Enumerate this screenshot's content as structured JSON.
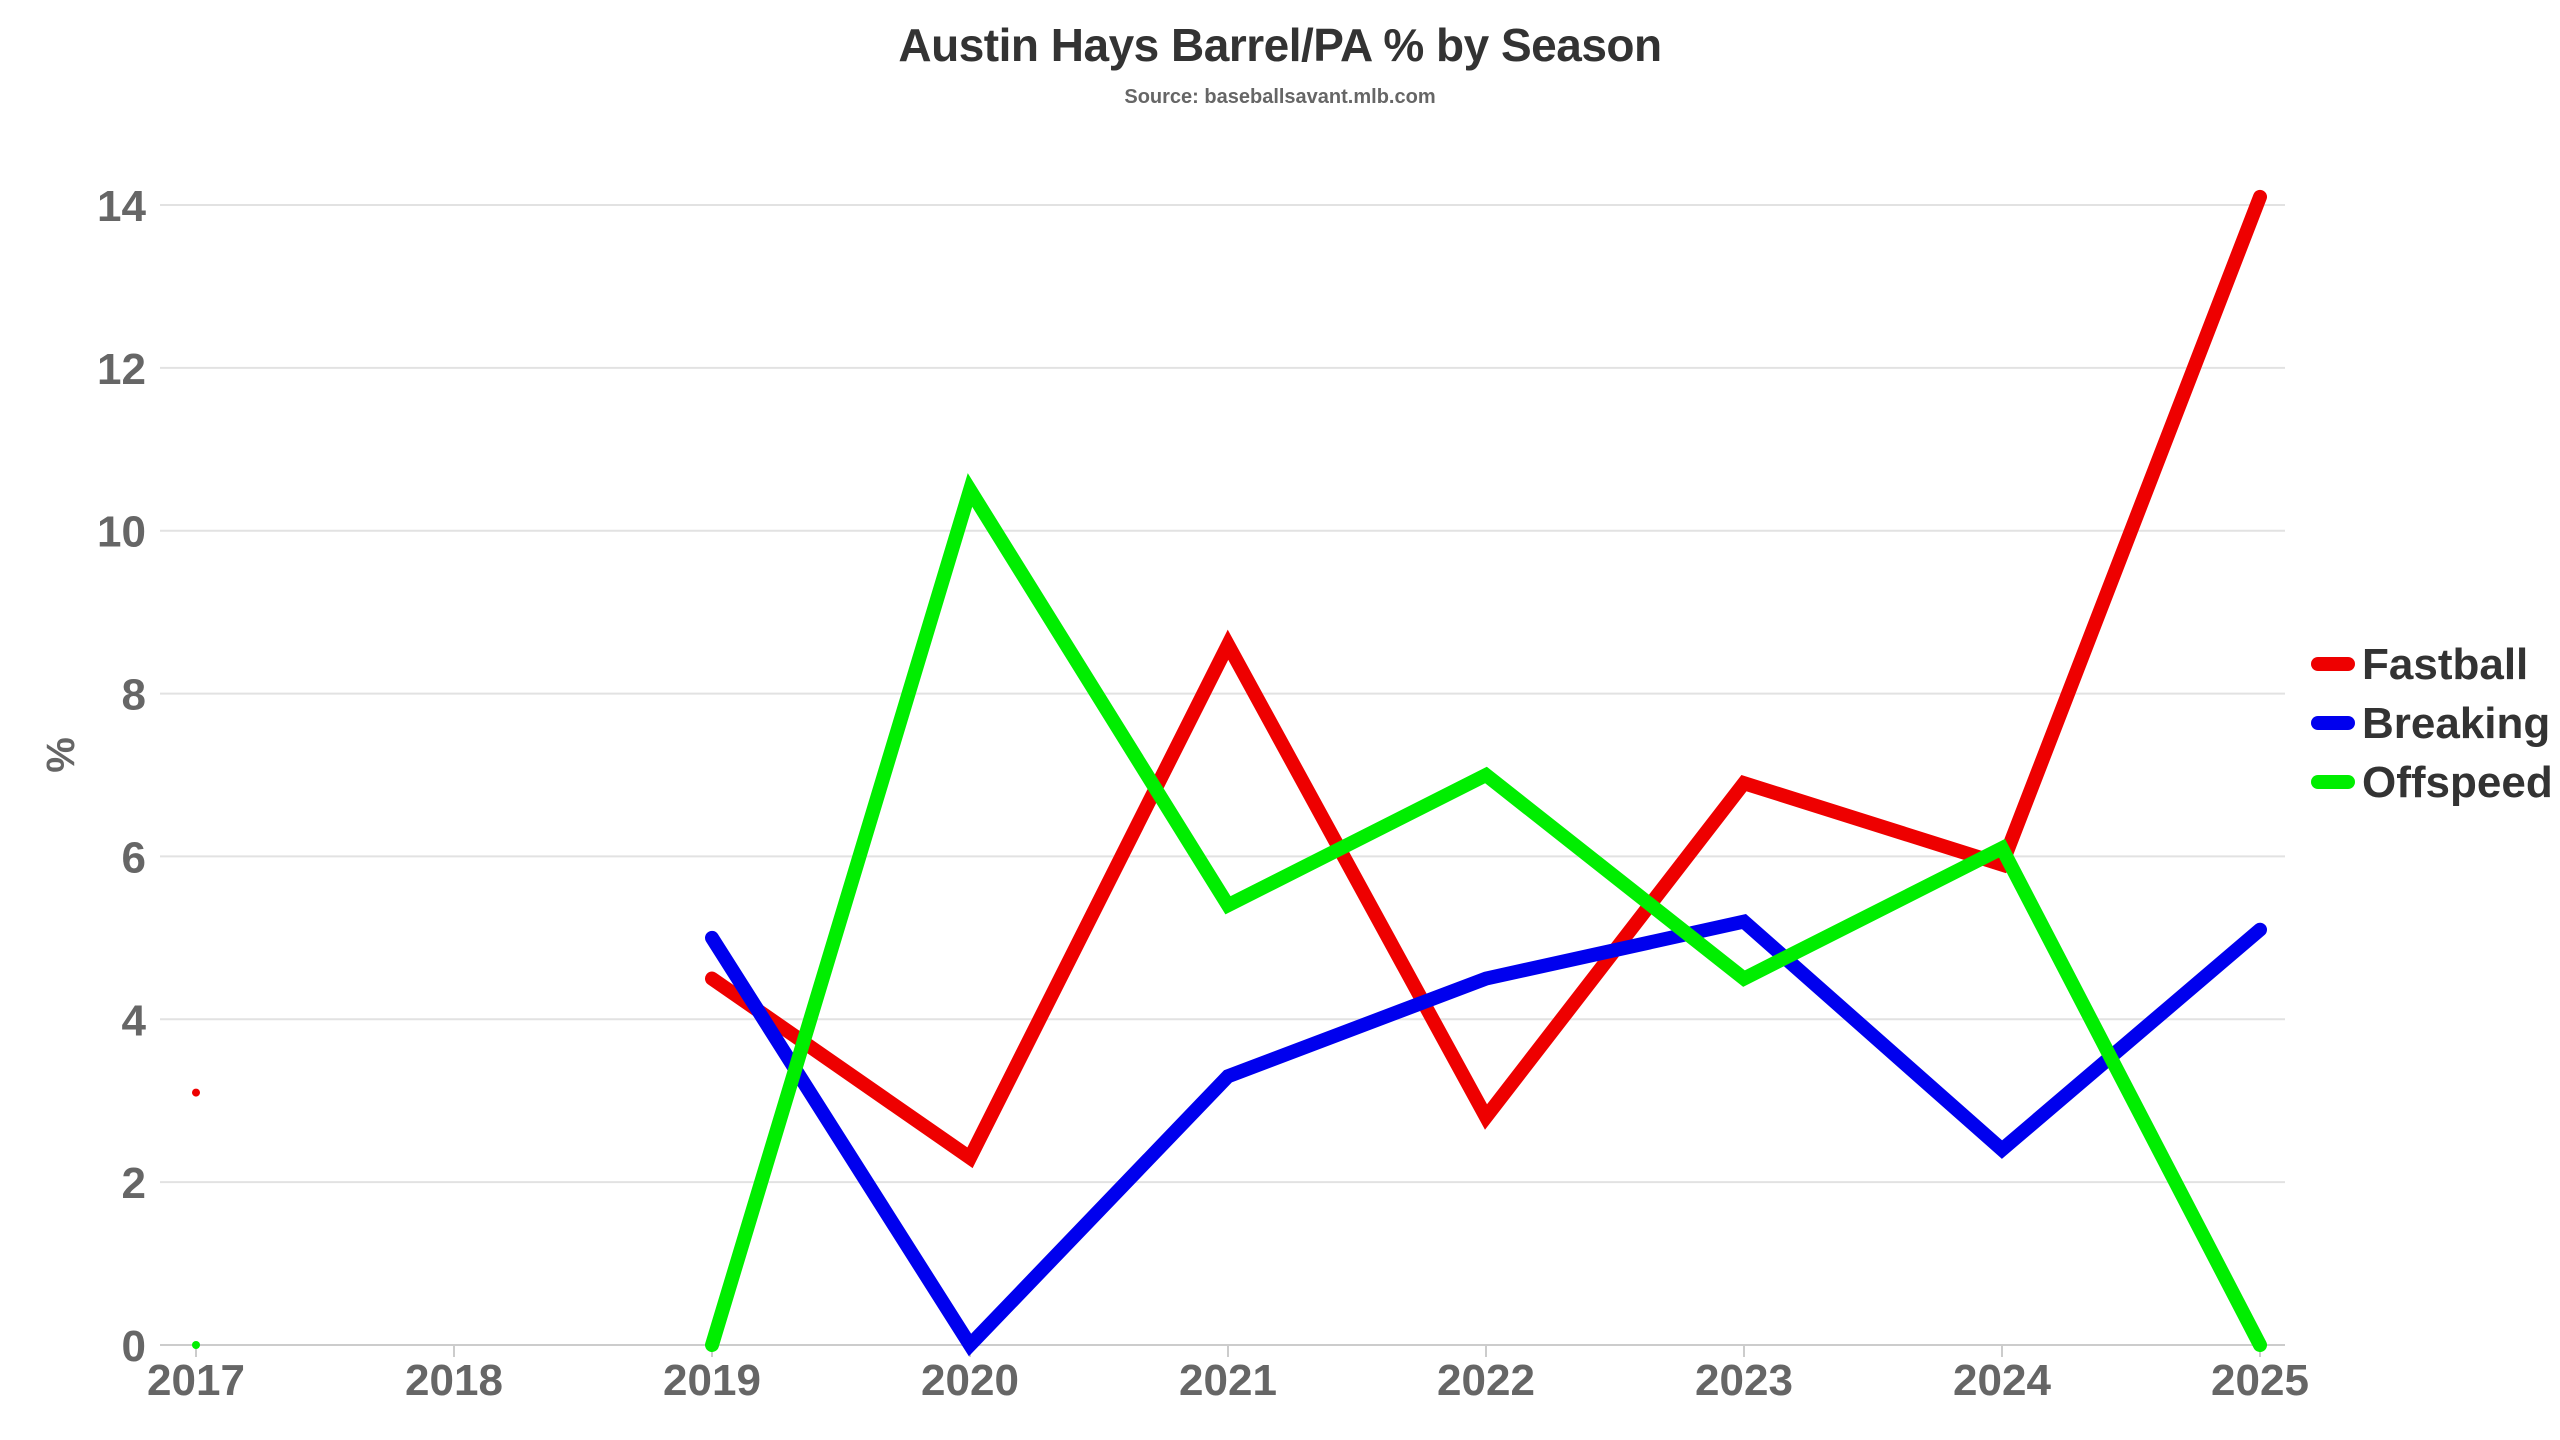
{
  "chart_data": {
    "type": "line",
    "title": "Austin Hays Barrel/PA % by Season",
    "subtitle": "Source: baseballsavant.mlb.com",
    "xlabel": "",
    "ylabel": "%",
    "categories": [
      "2017",
      "2018",
      "2019",
      "2020",
      "2021",
      "2022",
      "2023",
      "2024",
      "2025"
    ],
    "ylim": [
      0,
      14
    ],
    "yticks": [
      0,
      2,
      4,
      6,
      8,
      10,
      12,
      14
    ],
    "grid": true,
    "legend_position": "right",
    "series": [
      {
        "name": "Fastball",
        "color": "#ee0000",
        "values": [
          3.1,
          null,
          4.5,
          2.3,
          8.6,
          2.8,
          6.9,
          5.9,
          14.1
        ]
      },
      {
        "name": "Breaking",
        "color": "#0000ee",
        "values": [
          null,
          null,
          5.0,
          0.0,
          3.3,
          4.5,
          5.2,
          2.4,
          5.1
        ]
      },
      {
        "name": "Offspeed",
        "color": "#00ee00",
        "values": [
          0.0,
          null,
          0.0,
          10.5,
          5.4,
          7.0,
          4.5,
          6.1,
          0.0
        ]
      }
    ]
  }
}
